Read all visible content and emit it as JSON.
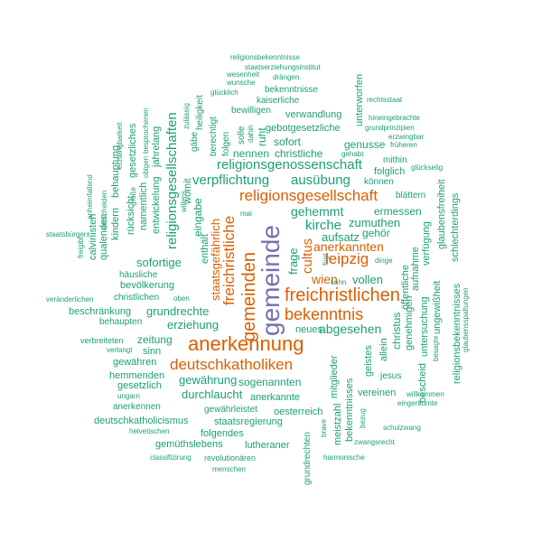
{
  "colors": {
    "teal": "#1b9e77",
    "orange": "#d95f02",
    "purple": "#7570b3"
  },
  "words": [
    {
      "text": "gemeinde",
      "color": "purple"
    },
    {
      "text": "freichristlichen",
      "color": "orange"
    },
    {
      "text": "anerkennung",
      "color": "orange"
    },
    {
      "text": "gemeinden",
      "color": "orange"
    },
    {
      "text": "religionsgesellschaft",
      "color": "orange"
    },
    {
      "text": "bekenntnis",
      "color": "orange"
    },
    {
      "text": "deutschkatholiken",
      "color": "orange"
    },
    {
      "text": "freichristliche",
      "color": "orange"
    },
    {
      "text": "leipzig",
      "color": "orange"
    },
    {
      "text": "anerkannten",
      "color": "orange"
    },
    {
      "text": "wien",
      "color": "orange"
    },
    {
      "text": "cultus",
      "color": "orange"
    },
    {
      "text": "religionsgesellschaften",
      "color": "teal"
    },
    {
      "text": "religionsgenossenschaft",
      "color": "teal"
    },
    {
      "text": "verpflichtung",
      "color": "teal"
    },
    {
      "text": "ausübung",
      "color": "teal"
    },
    {
      "text": "staatsgefährlich",
      "color": "orange"
    },
    {
      "text": "kirche",
      "color": "teal"
    },
    {
      "text": "gehemmt",
      "color": "teal"
    },
    {
      "text": "frage",
      "color": "teal"
    },
    {
      "text": "aufsatz",
      "color": "teal"
    },
    {
      "text": "zumuthen",
      "color": "teal"
    },
    {
      "text": "gehör",
      "color": "teal"
    },
    {
      "text": "ermessen",
      "color": "teal"
    },
    {
      "text": "abgesehen",
      "color": "teal"
    },
    {
      "text": "vollen",
      "color": "teal"
    },
    {
      "text": "neues",
      "color": "teal"
    },
    {
      "text": "sohn",
      "color": "teal"
    },
    {
      "text": "grundrechte",
      "color": "teal"
    },
    {
      "text": "erziehung",
      "color": "teal"
    },
    {
      "text": "sofortige",
      "color": "teal"
    },
    {
      "text": "bevölkerung",
      "color": "teal"
    },
    {
      "text": "christlichen",
      "color": "teal"
    },
    {
      "text": "häusliche",
      "color": "teal"
    },
    {
      "text": "oben",
      "color": "teal"
    },
    {
      "text": "beschränkung",
      "color": "teal"
    },
    {
      "text": "behaupten",
      "color": "teal"
    },
    {
      "text": "zeitung",
      "color": "teal"
    },
    {
      "text": "verbreiteten",
      "color": "teal"
    },
    {
      "text": "verlangt",
      "color": "teal"
    },
    {
      "text": "sinn",
      "color": "teal"
    },
    {
      "text": "gewähren",
      "color": "teal"
    },
    {
      "text": "hemmenden",
      "color": "teal"
    },
    {
      "text": "gesetzlich",
      "color": "teal"
    },
    {
      "text": "ungarn",
      "color": "teal"
    },
    {
      "text": "anerkennen",
      "color": "teal"
    },
    {
      "text": "gewährung",
      "color": "teal"
    },
    {
      "text": "durchlaucht",
      "color": "teal"
    },
    {
      "text": "sogenannten",
      "color": "teal"
    },
    {
      "text": "anerkannte",
      "color": "teal"
    },
    {
      "text": "gewährleistet",
      "color": "teal"
    },
    {
      "text": "oesterreich",
      "color": "teal"
    },
    {
      "text": "deutschkatholicismus",
      "color": "teal"
    },
    {
      "text": "staatsregierung",
      "color": "teal"
    },
    {
      "text": "helvetischen",
      "color": "teal"
    },
    {
      "text": "folgendes",
      "color": "teal"
    },
    {
      "text": "gemüthslebens",
      "color": "teal"
    },
    {
      "text": "lutheraner",
      "color": "teal"
    },
    {
      "text": "classifizirung",
      "color": "teal"
    },
    {
      "text": "revolutionären",
      "color": "teal"
    },
    {
      "text": "menschen",
      "color": "teal"
    },
    {
      "text": "religionsbekenntnisse",
      "color": "teal"
    },
    {
      "text": "staatserziehungsinstitut",
      "color": "teal"
    },
    {
      "text": "wesenheit",
      "color": "teal"
    },
    {
      "text": "drängen",
      "color": "teal"
    },
    {
      "text": "wunsche",
      "color": "teal"
    },
    {
      "text": "glücklich",
      "color": "teal"
    },
    {
      "text": "bekenntnisse",
      "color": "teal"
    },
    {
      "text": "kaiserliche",
      "color": "teal"
    },
    {
      "text": "bewilligen",
      "color": "teal"
    },
    {
      "text": "verwandlung",
      "color": "teal"
    },
    {
      "text": "gebotgesetzliche",
      "color": "teal"
    },
    {
      "text": "sofort",
      "color": "teal"
    },
    {
      "text": "nennen",
      "color": "teal"
    },
    {
      "text": "christliche",
      "color": "teal"
    },
    {
      "text": "genusse",
      "color": "teal"
    },
    {
      "text": "gehabt",
      "color": "teal"
    },
    {
      "text": "folglich",
      "color": "teal"
    },
    {
      "text": "können",
      "color": "teal"
    },
    {
      "text": "hineingebrachte",
      "color": "teal"
    },
    {
      "text": "grundprinzipien",
      "color": "teal"
    },
    {
      "text": "erzwingbar",
      "color": "teal"
    },
    {
      "text": "früheren",
      "color": "teal"
    },
    {
      "text": "mithin",
      "color": "teal"
    },
    {
      "text": "glückselig",
      "color": "teal"
    },
    {
      "text": "blättern",
      "color": "teal"
    },
    {
      "text": "rechtsstaat",
      "color": "teal"
    },
    {
      "text": "dinge",
      "color": "teal"
    },
    {
      "text": "jesus",
      "color": "teal"
    },
    {
      "text": "vereinen",
      "color": "teal"
    },
    {
      "text": "willkommen",
      "color": "teal"
    },
    {
      "text": "eingeräumte",
      "color": "teal"
    },
    {
      "text": "schulzwang",
      "color": "teal"
    },
    {
      "text": "zwangsrecht",
      "color": "teal"
    },
    {
      "text": "harmonische",
      "color": "teal"
    },
    {
      "text": "staatsbürgers",
      "color": "teal"
    },
    {
      "text": "veränderlichen",
      "color": "teal"
    },
    {
      "text": "mai",
      "color": "teal"
    },
    {
      "text": "religionsbekenntnisses",
      "color": "teal"
    },
    {
      "text": "christus",
      "color": "teal"
    },
    {
      "text": "allein",
      "color": "teal"
    },
    {
      "text": "geistes",
      "color": "teal"
    },
    {
      "text": "mitglieder",
      "color": "teal"
    },
    {
      "text": "meistzahl",
      "color": "teal"
    },
    {
      "text": "bekenntnisses",
      "color": "teal"
    },
    {
      "text": "grundrechten",
      "color": "teal"
    },
    {
      "text": "brave",
      "color": "teal"
    },
    {
      "text": "bezug",
      "color": "teal"
    },
    {
      "text": "genehmigen",
      "color": "teal"
    },
    {
      "text": "öffentliche",
      "color": "teal"
    },
    {
      "text": "aufnahme",
      "color": "teal"
    },
    {
      "text": "bescheid",
      "color": "teal"
    },
    {
      "text": "untersuchung",
      "color": "teal"
    },
    {
      "text": "verfügung",
      "color": "teal"
    },
    {
      "text": "ungewißheit",
      "color": "teal"
    },
    {
      "text": "besagte",
      "color": "teal"
    },
    {
      "text": "glaubensfreiheit",
      "color": "teal"
    },
    {
      "text": "schlechterdings",
      "color": "teal"
    },
    {
      "text": "glaubensspaltungen",
      "color": "teal"
    },
    {
      "text": "unterworfen",
      "color": "teal"
    },
    {
      "text": "fügt",
      "color": "teal"
    },
    {
      "text": "ruht",
      "color": "teal"
    },
    {
      "text": "dahin",
      "color": "teal"
    },
    {
      "text": "solle",
      "color": "teal"
    },
    {
      "text": "folgen",
      "color": "teal"
    },
    {
      "text": "berechtigt",
      "color": "teal"
    },
    {
      "text": "gäbe",
      "color": "teal"
    },
    {
      "text": "heiligkeit",
      "color": "teal"
    },
    {
      "text": "zulässig",
      "color": "teal"
    },
    {
      "text": "womit",
      "color": "teal"
    },
    {
      "text": "eingabe",
      "color": "teal"
    },
    {
      "text": "willens",
      "color": "teal"
    },
    {
      "text": "enthält",
      "color": "teal"
    },
    {
      "text": "entwickelung",
      "color": "teal"
    },
    {
      "text": "jahrelang",
      "color": "teal"
    },
    {
      "text": "namentlich",
      "color": "teal"
    },
    {
      "text": "gesetzliches",
      "color": "teal"
    },
    {
      "text": "obigen",
      "color": "teal"
    },
    {
      "text": "besprochenen",
      "color": "teal"
    },
    {
      "text": "große",
      "color": "teal"
    },
    {
      "text": "rücksicht",
      "color": "teal"
    },
    {
      "text": "erzwingbarkeit",
      "color": "teal"
    },
    {
      "text": "kindern",
      "color": "teal"
    },
    {
      "text": "behauptung",
      "color": "teal"
    },
    {
      "text": "entscheiden",
      "color": "teal"
    },
    {
      "text": "calvinisten",
      "color": "teal"
    },
    {
      "text": "qualenden",
      "color": "teal"
    },
    {
      "text": "anheimfallend",
      "color": "teal"
    },
    {
      "text": "freigibt",
      "color": "teal"
    }
  ]
}
